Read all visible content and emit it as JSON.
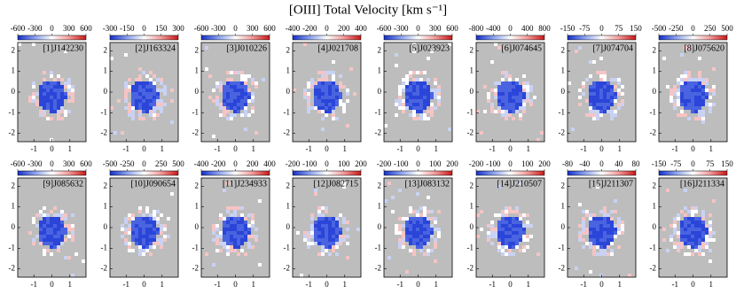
{
  "title": "[OIII] Total Velocity [km s⁻¹]",
  "chart_data": [
    {
      "type": "heatmap",
      "title": "[1]J142230",
      "clim": [
        -600,
        600
      ],
      "cticks": [
        -600,
        -300,
        0,
        300,
        600
      ],
      "xlim": [
        -1.9,
        1.9
      ],
      "xticks": [
        -1,
        0,
        1
      ],
      "ylim": [
        -2.4,
        2.4
      ],
      "yticks": [
        -2,
        -1,
        0,
        1,
        2
      ]
    },
    {
      "type": "heatmap",
      "title": "[2]J163324",
      "clim": [
        -300,
        300
      ],
      "cticks": [
        -300,
        -150,
        0,
        150,
        300
      ],
      "xlim": [
        -1.9,
        1.9
      ],
      "xticks": [
        -1,
        0,
        1
      ],
      "ylim": [
        -2.4,
        2.4
      ],
      "yticks": [
        -2,
        -1,
        0,
        1,
        2
      ]
    },
    {
      "type": "heatmap",
      "title": "[3]J010226",
      "clim": [
        -600,
        600
      ],
      "cticks": [
        -600,
        -300,
        0,
        300,
        600
      ],
      "xlim": [
        -1.9,
        1.9
      ],
      "xticks": [
        -1,
        0,
        1
      ],
      "ylim": [
        -2.4,
        2.4
      ],
      "yticks": [
        -2,
        -1,
        0,
        1,
        2
      ]
    },
    {
      "type": "heatmap",
      "title": "[4]J021708",
      "clim": [
        -400,
        400
      ],
      "cticks": [
        -400,
        -200,
        0,
        200,
        400
      ],
      "xlim": [
        -1.9,
        1.9
      ],
      "xticks": [
        -1,
        0,
        1
      ],
      "ylim": [
        -2.4,
        2.4
      ],
      "yticks": [
        -2,
        -1,
        0,
        1,
        2
      ]
    },
    {
      "type": "heatmap",
      "title": "[5]J023923",
      "clim": [
        -600,
        600
      ],
      "cticks": [
        -600,
        -300,
        0,
        300,
        600
      ],
      "xlim": [
        -1.9,
        1.9
      ],
      "xticks": [
        -1,
        0,
        1
      ],
      "ylim": [
        -2.4,
        2.4
      ],
      "yticks": [
        -2,
        -1,
        0,
        1,
        2
      ]
    },
    {
      "type": "heatmap",
      "title": "[6]J074645",
      "clim": [
        -800,
        800
      ],
      "cticks": [
        -800,
        -400,
        0,
        400,
        800
      ],
      "xlim": [
        -1.9,
        1.9
      ],
      "xticks": [
        -1,
        0,
        1
      ],
      "ylim": [
        -2.4,
        2.4
      ],
      "yticks": [
        -2,
        -1,
        0,
        1,
        2
      ]
    },
    {
      "type": "heatmap",
      "title": "[7]J074704",
      "clim": [
        -150,
        150
      ],
      "cticks": [
        -150,
        -75,
        0,
        75,
        150
      ],
      "xlim": [
        -1.9,
        1.9
      ],
      "xticks": [
        -1,
        0,
        1
      ],
      "ylim": [
        -2.4,
        2.4
      ],
      "yticks": [
        -2,
        -1,
        0,
        1,
        2
      ]
    },
    {
      "type": "heatmap",
      "title": "[8]J075620",
      "clim": [
        -500,
        500
      ],
      "cticks": [
        -500,
        -250,
        0,
        250,
        500
      ],
      "xlim": [
        -1.9,
        1.9
      ],
      "xticks": [
        -1,
        0,
        1
      ],
      "ylim": [
        -2.4,
        2.4
      ],
      "yticks": [
        -2,
        -1,
        0,
        1,
        2
      ]
    },
    {
      "type": "heatmap",
      "title": "[9]J085632",
      "clim": [
        -600,
        600
      ],
      "cticks": [
        -600,
        -300,
        0,
        300,
        600
      ],
      "xlim": [
        -1.9,
        1.9
      ],
      "xticks": [
        -1,
        0,
        1
      ],
      "ylim": [
        -2.4,
        2.4
      ],
      "yticks": [
        -2,
        -1,
        0,
        1,
        2
      ]
    },
    {
      "type": "heatmap",
      "title": "[10]J090654",
      "clim": [
        -500,
        500
      ],
      "cticks": [
        -500,
        -250,
        0,
        250,
        500
      ],
      "xlim": [
        -1.9,
        1.9
      ],
      "xticks": [
        -1,
        0,
        1
      ],
      "ylim": [
        -2.4,
        2.4
      ],
      "yticks": [
        -2,
        -1,
        0,
        1,
        2
      ]
    },
    {
      "type": "heatmap",
      "title": "[11]J234933",
      "clim": [
        -400,
        400
      ],
      "cticks": [
        -400,
        -200,
        0,
        200,
        400
      ],
      "xlim": [
        -1.9,
        1.9
      ],
      "xticks": [
        -1,
        0,
        1
      ],
      "ylim": [
        -2.4,
        2.4
      ],
      "yticks": [
        -2,
        -1,
        0,
        1,
        2
      ]
    },
    {
      "type": "heatmap",
      "title": "[12]J082715",
      "clim": [
        -200,
        200
      ],
      "cticks": [
        -200,
        -100,
        0,
        100,
        200
      ],
      "xlim": [
        -1.9,
        1.9
      ],
      "xticks": [
        -1,
        0,
        1
      ],
      "ylim": [
        -2.4,
        2.4
      ],
      "yticks": [
        -2,
        -1,
        0,
        1,
        2
      ]
    },
    {
      "type": "heatmap",
      "title": "[13]J083132",
      "clim": [
        -200,
        200
      ],
      "cticks": [
        -200,
        -100,
        0,
        100,
        200
      ],
      "xlim": [
        -1.9,
        1.9
      ],
      "xticks": [
        -1,
        0,
        1
      ],
      "ylim": [
        -2.4,
        2.4
      ],
      "yticks": [
        -2,
        -1,
        0,
        1,
        2
      ]
    },
    {
      "type": "heatmap",
      "title": "[14]J210507",
      "clim": [
        -200,
        200
      ],
      "cticks": [
        -200,
        -100,
        0,
        100,
        200
      ],
      "xlim": [
        -1.9,
        1.9
      ],
      "xticks": [
        -1,
        0,
        1
      ],
      "ylim": [
        -2.4,
        2.4
      ],
      "yticks": [
        -2,
        -1,
        0,
        1,
        2
      ]
    },
    {
      "type": "heatmap",
      "title": "[15]J211307",
      "clim": [
        -80,
        80
      ],
      "cticks": [
        -80,
        -40,
        0,
        40,
        80
      ],
      "xlim": [
        -1.9,
        1.9
      ],
      "xticks": [
        -1,
        0,
        1
      ],
      "ylim": [
        -2.4,
        2.4
      ],
      "yticks": [
        -2,
        -1,
        0,
        1,
        2
      ]
    },
    {
      "type": "heatmap",
      "title": "[16]J211334",
      "clim": [
        -150,
        150
      ],
      "cticks": [
        -150,
        -75,
        0,
        75,
        150
      ],
      "xlim": [
        -1.9,
        1.9
      ],
      "xticks": [
        -1,
        0,
        1
      ],
      "ylim": [
        -2.4,
        2.4
      ],
      "yticks": [
        -2,
        -1,
        0,
        1,
        2
      ]
    }
  ]
}
